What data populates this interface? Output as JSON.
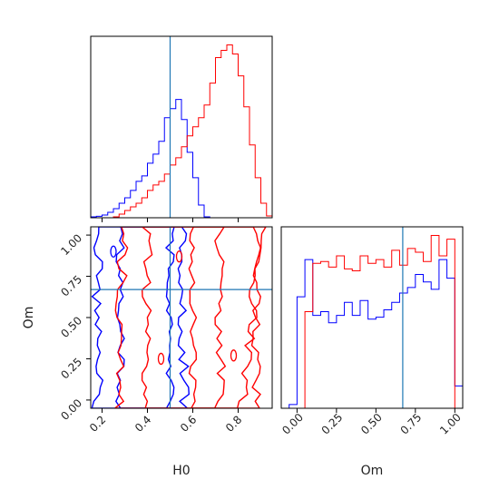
{
  "chart_data": [
    {
      "type": "histogram",
      "panel": "H0 marginal",
      "x_range": [
        0.15,
        0.95
      ],
      "x_ticks": [
        "0.2",
        "0.4",
        "0.6",
        "0.8"
      ],
      "y_ticks": [],
      "truth_line": 0.5,
      "bins": [
        0.15,
        0.175,
        0.2,
        0.225,
        0.25,
        0.275,
        0.3,
        0.325,
        0.35,
        0.375,
        0.4,
        0.425,
        0.45,
        0.475,
        0.5,
        0.525,
        0.55,
        0.575,
        0.6,
        0.625,
        0.65,
        0.675,
        0.7,
        0.725,
        0.75,
        0.775,
        0.8,
        0.825,
        0.85,
        0.875,
        0.9,
        0.925,
        0.95
      ],
      "series": [
        {
          "color": "#0000ff",
          "values": [
            0.005,
            0.008,
            0.015,
            0.03,
            0.05,
            0.08,
            0.11,
            0.15,
            0.2,
            0.23,
            0.3,
            0.35,
            0.42,
            0.55,
            0.6,
            0.65,
            0.54,
            0.36,
            0.22,
            0.07,
            0.005,
            0,
            0,
            0,
            0,
            0,
            0,
            0,
            0,
            0,
            0,
            0
          ]
        },
        {
          "color": "#ff0000",
          "values": [
            0,
            0,
            0,
            0,
            0.005,
            0.02,
            0.04,
            0.06,
            0.08,
            0.11,
            0.15,
            0.18,
            0.2,
            0.24,
            0.29,
            0.33,
            0.39,
            0.45,
            0.5,
            0.55,
            0.62,
            0.74,
            0.88,
            0.92,
            0.95,
            0.9,
            0.78,
            0.61,
            0.4,
            0.22,
            0.08,
            0.01
          ]
        }
      ]
    },
    {
      "type": "contour",
      "panel": "H0 vs Om",
      "xlabel": "H0",
      "ylabel": "Om",
      "x_range": [
        0.15,
        0.95
      ],
      "y_range": [
        -0.05,
        1.05
      ],
      "x_ticks": [
        "0.2",
        "0.4",
        "0.6",
        "0.8"
      ],
      "y_ticks": [
        "0.00",
        "0.25",
        "0.50",
        "0.75",
        "1.00"
      ],
      "truth_x": 0.5,
      "truth_y": 0.67,
      "series": [
        {
          "color": "#0000ff",
          "levels": [
            "inner",
            "outer"
          ]
        },
        {
          "color": "#ff0000",
          "levels": [
            "inner",
            "outer"
          ]
        }
      ]
    },
    {
      "type": "histogram",
      "panel": "Om marginal",
      "xlabel": "Om",
      "x_range": [
        -0.1,
        1.05
      ],
      "x_ticks": [
        "0.00",
        "0.25",
        "0.50",
        "0.75",
        "1.00"
      ],
      "y_ticks": [],
      "truth_line": 0.67,
      "bins": [
        -0.05,
        0.0,
        0.05,
        0.1,
        0.15,
        0.2,
        0.25,
        0.3,
        0.35,
        0.4,
        0.45,
        0.5,
        0.55,
        0.6,
        0.65,
        0.7,
        0.75,
        0.8,
        0.85,
        0.9,
        0.95,
        1.0,
        1.05
      ],
      "series": [
        {
          "color": "#0000ff",
          "values": [
            0.02,
            0.6,
            0.8,
            0.5,
            0.52,
            0.46,
            0.5,
            0.57,
            0.5,
            0.58,
            0.48,
            0.49,
            0.53,
            0.57,
            0.62,
            0.65,
            0.72,
            0.68,
            0.64,
            0.8,
            0.7,
            0.12
          ]
        },
        {
          "color": "#ff0000",
          "values": [
            0,
            0,
            0.52,
            0.78,
            0.79,
            0.76,
            0.82,
            0.75,
            0.74,
            0.82,
            0.78,
            0.8,
            0.76,
            0.85,
            0.77,
            0.86,
            0.84,
            0.79,
            0.93,
            0.82,
            0.91,
            0
          ]
        }
      ]
    }
  ]
}
